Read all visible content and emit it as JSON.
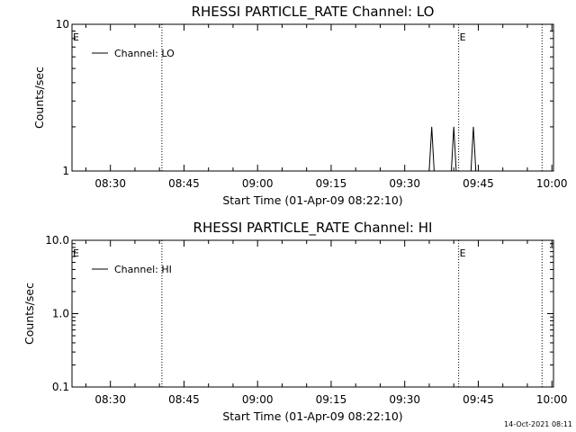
{
  "chart_data": [
    {
      "type": "line",
      "title": "RHESSI PARTICLE_RATE Channel: LO",
      "xlabel": "Start Time (01-Apr-09 08:22:10)",
      "ylabel": "Counts/sec",
      "x_tick_labels": [
        "08:30",
        "08:45",
        "09:00",
        "09:15",
        "09:30",
        "09:45",
        "10:00"
      ],
      "y_scale": "log",
      "ylim": [
        1,
        10
      ],
      "y_tick_labels": [
        "1",
        "10"
      ],
      "legend_placement": "top-left",
      "series": [
        {
          "name": "Channel: LO",
          "color": "#000000",
          "x": [
            "09:35:00",
            "09:35:30",
            "09:36:00",
            "09:39:30",
            "09:40:00",
            "09:40:30",
            "09:43:30",
            "09:44:00",
            "09:44:30"
          ],
          "y": [
            1,
            2,
            1,
            1,
            2,
            1,
            1,
            2,
            1
          ]
        }
      ],
      "vlines": [
        "08:40:30",
        "09:41:00",
        "09:58:00"
      ],
      "markers": [
        {
          "label": "E",
          "x": "08:22:10"
        },
        {
          "label": "E",
          "x": "09:41:00"
        }
      ]
    },
    {
      "type": "line",
      "title": "RHESSI PARTICLE_RATE Channel: HI",
      "xlabel": "Start Time (01-Apr-09 08:22:10)",
      "ylabel": "Counts/sec",
      "x_tick_labels": [
        "08:30",
        "08:45",
        "09:00",
        "09:15",
        "09:30",
        "09:45",
        "10:00"
      ],
      "y_scale": "log",
      "ylim": [
        0.1,
        10
      ],
      "y_tick_labels": [
        "0.1",
        "1.0",
        "10.0"
      ],
      "legend_placement": "top-left",
      "series": [
        {
          "name": "Channel: HI",
          "color": "#000000",
          "x": [],
          "y": []
        }
      ],
      "vlines": [
        "08:40:30",
        "09:41:00",
        "09:58:00"
      ],
      "markers": [
        {
          "label": "E",
          "x": "08:22:10"
        },
        {
          "label": "E",
          "x": "09:41:00"
        }
      ]
    }
  ],
  "footer": "14-Oct-2021 08:11"
}
